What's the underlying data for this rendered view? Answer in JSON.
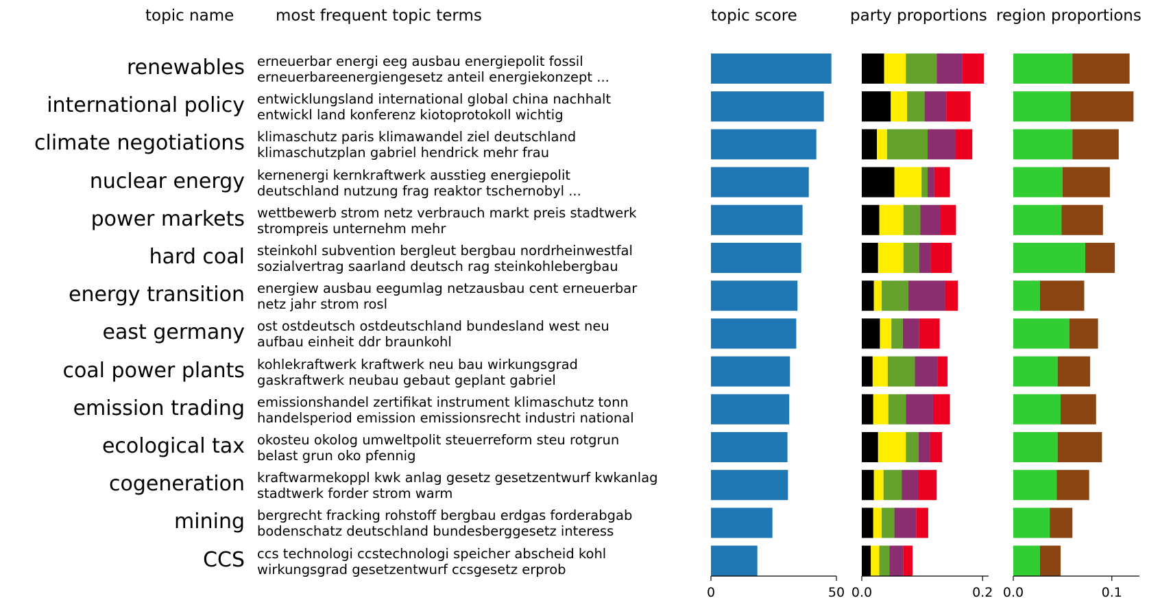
{
  "headers": {
    "topic_name": "topic name",
    "terms": "most frequent topic terms",
    "score": "topic score",
    "party": "party proportions",
    "region": "region proportions"
  },
  "colors": {
    "score": "#1f77b4",
    "party": [
      "#000000",
      "#ffed00",
      "#64a12d",
      "#8b2e6f",
      "#eb001f"
    ],
    "region": [
      "#32cd32",
      "#8b4513"
    ]
  },
  "chart_data": [
    {
      "type": "bar",
      "title": "topic score",
      "orientation": "horizontal",
      "categories": [
        "renewables",
        "international policy",
        "climate negotiations",
        "nuclear energy",
        "power markets",
        "hard coal",
        "energy transition",
        "east germany",
        "coal power plants",
        "emission trading",
        "ecological tax",
        "cogeneration",
        "mining",
        "CCS"
      ],
      "values": [
        48,
        45,
        42,
        39,
        36.5,
        36,
        34.5,
        34,
        31.5,
        31.2,
        30.5,
        30.7,
        24.5,
        18.5
      ],
      "xlim": [
        0,
        50
      ],
      "xticks": [
        "0",
        "50"
      ]
    },
    {
      "type": "bar",
      "stacked": true,
      "orientation": "horizontal",
      "title": "party proportions",
      "categories": [
        "renewables",
        "international policy",
        "climate negotiations",
        "nuclear energy",
        "power markets",
        "hard coal",
        "energy transition",
        "east germany",
        "coal power plants",
        "emission trading",
        "ecological tax",
        "cogeneration",
        "mining",
        "CCS"
      ],
      "series": [
        {
          "values": [
            0.037,
            0.048,
            0.025,
            0.054,
            0.029,
            0.027,
            0.02,
            0.03,
            0.018,
            0.019,
            0.027,
            0.02,
            0.019,
            0.015
          ]
        },
        {
          "values": [
            0.036,
            0.027,
            0.017,
            0.045,
            0.04,
            0.042,
            0.013,
            0.019,
            0.025,
            0.025,
            0.046,
            0.016,
            0.014,
            0.014
          ]
        },
        {
          "values": [
            0.051,
            0.029,
            0.067,
            0.01,
            0.028,
            0.026,
            0.044,
            0.019,
            0.045,
            0.029,
            0.021,
            0.03,
            0.021,
            0.017
          ]
        },
        {
          "values": [
            0.042,
            0.036,
            0.046,
            0.011,
            0.033,
            0.019,
            0.061,
            0.027,
            0.037,
            0.045,
            0.019,
            0.027,
            0.036,
            0.023
          ]
        },
        {
          "values": [
            0.036,
            0.04,
            0.028,
            0.026,
            0.026,
            0.035,
            0.021,
            0.034,
            0.017,
            0.028,
            0.02,
            0.031,
            0.02,
            0.015
          ]
        }
      ],
      "xlim": [
        0,
        0.21
      ],
      "xticks": [
        "0.0",
        "0.2"
      ]
    },
    {
      "type": "bar",
      "stacked": true,
      "orientation": "horizontal",
      "title": "region proportions",
      "categories": [
        "renewables",
        "international policy",
        "climate negotiations",
        "nuclear energy",
        "power markets",
        "hard coal",
        "energy transition",
        "east germany",
        "coal power plants",
        "emission trading",
        "ecological tax",
        "cogeneration",
        "mining",
        "CCS"
      ],
      "series": [
        {
          "values": [
            0.06,
            0.058,
            0.06,
            0.05,
            0.049,
            0.073,
            0.027,
            0.057,
            0.045,
            0.048,
            0.045,
            0.044,
            0.037,
            0.027
          ]
        },
        {
          "values": [
            0.058,
            0.064,
            0.047,
            0.048,
            0.042,
            0.03,
            0.045,
            0.029,
            0.033,
            0.036,
            0.045,
            0.033,
            0.023,
            0.021
          ]
        }
      ],
      "xlim": [
        0,
        0.128
      ],
      "xticks": [
        "0.0",
        "0.1"
      ]
    }
  ],
  "topics": [
    {
      "name": "renewables",
      "terms1": "erneuerbar energi eeg ausbau energiepolit fossil",
      "terms2": "erneuerbareenergiengesetz anteil energiekonzept ..."
    },
    {
      "name": "international policy",
      "terms1": "entwicklungsland international global china nachhalt",
      "terms2": "entwickl land konferenz kiotoprotokoll wichtig"
    },
    {
      "name": "climate negotiations",
      "terms1": "klimaschutz paris klimawandel ziel deutschland",
      "terms2": "klimaschutzplan gabriel hendrick mehr frau"
    },
    {
      "name": "nuclear energy",
      "terms1": "kernenergi kernkraftwerk ausstieg energiepolit",
      "terms2": "deutschland nutzung frag reaktor tschernobyl ..."
    },
    {
      "name": "power markets",
      "terms1": "wettbewerb strom netz verbrauch markt preis stadtwerk",
      "terms2": "strompreis unternehm mehr"
    },
    {
      "name": "hard coal",
      "terms1": "steinkohl subvention bergleut bergbau nordrheinwestfal",
      "terms2": "sozialvertrag saarland deutsch rag steinkohlebergbau"
    },
    {
      "name": "energy transition",
      "terms1": "energiew ausbau eegumlag netzausbau cent erneuerbar",
      "terms2": "netz jahr strom rosl"
    },
    {
      "name": "east germany",
      "terms1": "ost ostdeutsch ostdeutschland bundesland west neu",
      "terms2": "aufbau einheit ddr braunkohl"
    },
    {
      "name": "coal power plants",
      "terms1": "kohlekraftwerk kraftwerk neu bau wirkungsgrad",
      "terms2": "gaskraftwerk neubau gebaut geplant gabriel"
    },
    {
      "name": "emission trading",
      "terms1": "emissionshandel zertifikat instrument klimaschutz tonn",
      "terms2": "handelsperiod emission emissionsrecht industri national"
    },
    {
      "name": "ecological tax",
      "terms1": "okosteu okolog umweltpolit steuerreform steu rotgrun",
      "terms2": "belast grun oko pfennig"
    },
    {
      "name": "cogeneration",
      "terms1": "kraftwarmekoppl kwk anlag gesetz gesetzentwurf kwkanlag",
      "terms2": "stadtwerk forder strom warm"
    },
    {
      "name": "mining",
      "terms1": "bergrecht fracking rohstoff bergbau erdgas forderabgab",
      "terms2": "bodenschatz deutschland bundesberggesetz interess"
    },
    {
      "name": "CCS",
      "terms1": "ccs technologi ccstechnologi speicher abscheid kohl",
      "terms2": "wirkungsgrad gesetzentwurf ccsgesetz erprob"
    }
  ]
}
